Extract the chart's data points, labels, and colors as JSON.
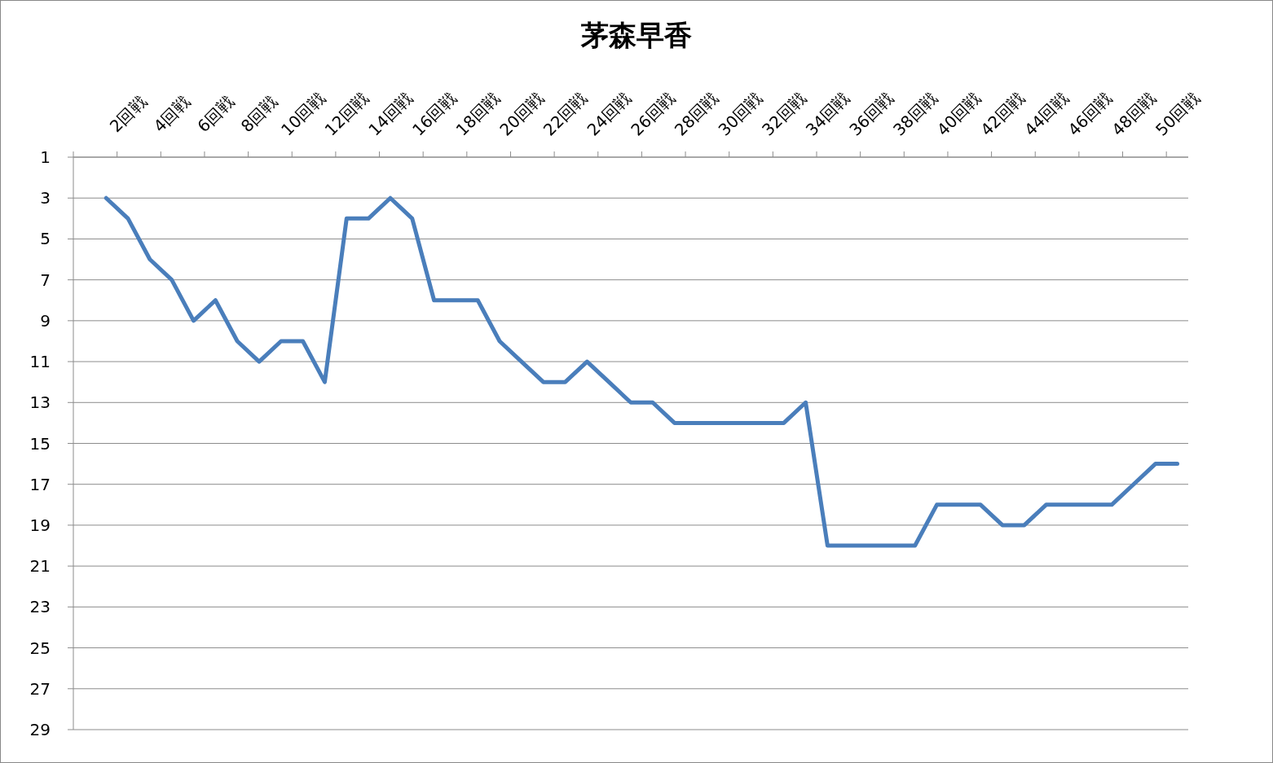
{
  "chart_data": {
    "type": "line",
    "title": "茅森早香",
    "categories": [
      null,
      null,
      "2回戦",
      null,
      "4回戦",
      null,
      "6回戦",
      null,
      "8回戦",
      null,
      "10回戦",
      null,
      "12回戦",
      null,
      "14回戦",
      null,
      "16回戦",
      null,
      "18回戦",
      null,
      "20回戦",
      null,
      "22回戦",
      null,
      "24回戦",
      null,
      "26回戦",
      null,
      "28回戦",
      null,
      "30回戦",
      null,
      "32回戦",
      null,
      "34回戦",
      null,
      "36回戦",
      null,
      "38回戦",
      null,
      "40回戦",
      null,
      "42回戦",
      null,
      "44回戦",
      null,
      "46回戦",
      null,
      "48回戦",
      null,
      "50回戦"
    ],
    "series": [
      {
        "color": "#4a7ebb",
        "values": [
          null,
          3,
          4,
          6,
          7,
          9,
          8,
          10,
          11,
          10,
          10,
          12,
          4,
          4,
          3,
          4,
          8,
          8,
          8,
          10,
          11,
          12,
          12,
          11,
          12,
          13,
          13,
          14,
          14,
          14,
          14,
          14,
          14,
          13,
          20,
          20,
          20,
          20,
          20,
          18,
          18,
          18,
          19,
          19,
          18,
          18,
          18,
          18,
          17,
          16,
          16
        ]
      }
    ],
    "ylim": [
      29,
      1
    ],
    "yticks": [
      1,
      3,
      5,
      7,
      9,
      11,
      13,
      15,
      17,
      19,
      21,
      23,
      25,
      27,
      29
    ],
    "grid": "y",
    "marker": "none",
    "line_style": "solid"
  }
}
